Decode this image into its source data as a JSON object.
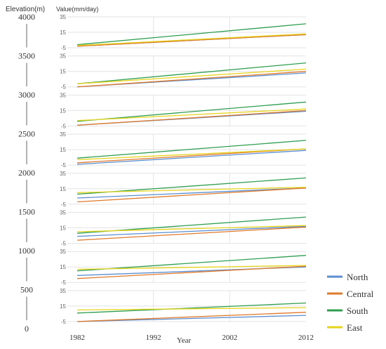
{
  "chart_data": {
    "type": "line",
    "title": "",
    "elevation_label": "Elevation(m)",
    "elevation_ticks": [
      "4000",
      "3500",
      "3000",
      "2500",
      "2000",
      "1500",
      "1000",
      "500",
      "0"
    ],
    "ylabel": "Value(mm/day)",
    "xlabel": "Year",
    "x_ticks": [
      "1982",
      "1992",
      "2002",
      "2012"
    ],
    "x_range": [
      1982,
      2012
    ],
    "y_ticks": [
      "35",
      "15",
      "-5"
    ],
    "ylim": [
      -5,
      35
    ],
    "grid": true,
    "legend_position": "bottom-right",
    "series": [
      {
        "name": "North",
        "color": "#5b8fd0"
      },
      {
        "name": "Central",
        "color": "#e07a2a"
      },
      {
        "name": "South",
        "color": "#2e9e4f"
      },
      {
        "name": "East",
        "color": "#e6d41c"
      }
    ],
    "panels": [
      {
        "elevation": "3500-4000",
        "lines": [
          {
            "series": "North",
            "x": [
              1982,
              2012
            ],
            "y": [
              -3,
              12
            ]
          },
          {
            "series": "Central",
            "x": [
              1982,
              2012
            ],
            "y": [
              -3,
              12
            ]
          },
          {
            "series": "South",
            "x": [
              1982,
              2012
            ],
            "y": [
              -1,
              26
            ]
          },
          {
            "series": "East",
            "x": [
              1982,
              2012
            ],
            "y": [
              -2,
              13
            ]
          }
        ]
      },
      {
        "elevation": "3000-3500",
        "lines": [
          {
            "series": "North",
            "x": [
              1982,
              2012
            ],
            "y": [
              -5,
              13
            ]
          },
          {
            "series": "Central",
            "x": [
              1982,
              2012
            ],
            "y": [
              -5,
              15
            ]
          },
          {
            "series": "South",
            "x": [
              1982,
              2012
            ],
            "y": [
              -1,
              26
            ]
          },
          {
            "series": "East",
            "x": [
              1982,
              2012
            ],
            "y": [
              -1,
              18
            ]
          }
        ]
      },
      {
        "elevation": "2500-3000",
        "lines": [
          {
            "series": "North",
            "x": [
              1982,
              2012
            ],
            "y": [
              -4,
              14
            ]
          },
          {
            "series": "Central",
            "x": [
              1982,
              2012
            ],
            "y": [
              -4,
              15
            ]
          },
          {
            "series": "South",
            "x": [
              1982,
              2012
            ],
            "y": [
              1,
              26
            ]
          },
          {
            "series": "East",
            "x": [
              1982,
              2012
            ],
            "y": [
              2,
              17
            ]
          }
        ]
      },
      {
        "elevation": "2000-2500",
        "lines": [
          {
            "series": "North",
            "x": [
              1982,
              2012
            ],
            "y": [
              -4,
              14
            ]
          },
          {
            "series": "Central",
            "x": [
              1982,
              2012
            ],
            "y": [
              -2,
              16
            ]
          },
          {
            "series": "South",
            "x": [
              1982,
              2012
            ],
            "y": [
              4,
              27
            ]
          },
          {
            "series": "East",
            "x": [
              1982,
              2012
            ],
            "y": [
              2,
              16
            ]
          }
        ]
      },
      {
        "elevation": "1500-2000",
        "lines": [
          {
            "series": "North",
            "x": [
              1982,
              2012
            ],
            "y": [
              3,
              16
            ]
          },
          {
            "series": "Central",
            "x": [
              1982,
              2012
            ],
            "y": [
              -2,
              16
            ]
          },
          {
            "series": "South",
            "x": [
              1982,
              2012
            ],
            "y": [
              8,
              29
            ]
          },
          {
            "series": "East",
            "x": [
              1982,
              2012
            ],
            "y": [
              10,
              17
            ]
          }
        ]
      },
      {
        "elevation": "1000-1500",
        "lines": [
          {
            "series": "North",
            "x": [
              1982,
              2012
            ],
            "y": [
              4,
              17
            ]
          },
          {
            "series": "Central",
            "x": [
              1982,
              2012
            ],
            "y": [
              -1,
              16
            ]
          },
          {
            "series": "South",
            "x": [
              1982,
              2012
            ],
            "y": [
              8,
              29
            ]
          },
          {
            "series": "East",
            "x": [
              1982,
              2012
            ],
            "y": [
              10,
              18
            ]
          }
        ]
      },
      {
        "elevation": "500-1000",
        "lines": [
          {
            "series": "North",
            "x": [
              1982,
              2012
            ],
            "y": [
              4,
              15
            ]
          },
          {
            "series": "Central",
            "x": [
              1982,
              2012
            ],
            "y": [
              0,
              16
            ]
          },
          {
            "series": "South",
            "x": [
              1982,
              2012
            ],
            "y": [
              10,
              30
            ]
          },
          {
            "series": "East",
            "x": [
              1982,
              2012
            ],
            "y": [
              12,
              17
            ]
          }
        ]
      },
      {
        "elevation": "0-500",
        "lines": [
          {
            "series": "North",
            "x": [
              1982,
              2012
            ],
            "y": [
              -5,
              3
            ]
          },
          {
            "series": "Central",
            "x": [
              1982,
              2012
            ],
            "y": [
              -5,
              7
            ]
          },
          {
            "series": "South",
            "x": [
              1982,
              2012
            ],
            "y": [
              6,
              19
            ]
          },
          {
            "series": "East",
            "x": [
              1982,
              2012
            ],
            "y": [
              10,
              13
            ]
          }
        ]
      }
    ]
  }
}
